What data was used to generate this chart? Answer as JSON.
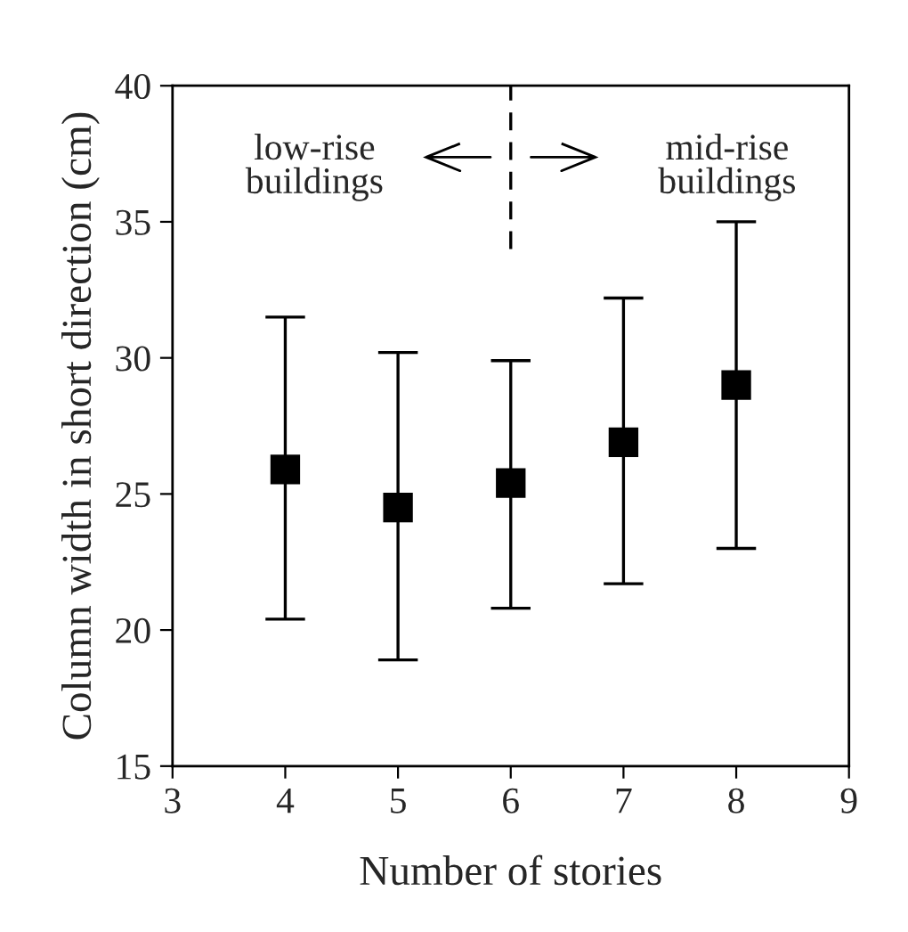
{
  "chart_data": {
    "type": "scatter",
    "xlabel": "Number of stories",
    "ylabel": "Column width in short direction (cm)",
    "x": [
      4,
      5,
      6,
      7,
      8
    ],
    "series": [
      {
        "color": "#000000",
        "values": [
          25.9,
          24.5,
          25.4,
          26.9,
          29.0
        ],
        "errors": [
          [
            20.4,
            31.5
          ],
          [
            18.9,
            30.2
          ],
          [
            20.8,
            29.9
          ],
          [
            21.7,
            32.2
          ],
          [
            23.0,
            35.0
          ]
        ]
      }
    ],
    "marker": "square",
    "grid": false,
    "legend": false,
    "xlim": [
      3,
      9
    ],
    "xticks": [
      3,
      4,
      5,
      6,
      7,
      8,
      9
    ],
    "ylim": [
      15,
      40
    ],
    "yticks": [
      15,
      20,
      25,
      30,
      35,
      40
    ],
    "ref_lines": [
      {
        "axis": "x",
        "value": 6,
        "color": "#000000",
        "line_style": "dashed"
      }
    ],
    "annotations": [
      "low-rise\nbuildings",
      "mid-rise\nbuildings"
    ]
  }
}
